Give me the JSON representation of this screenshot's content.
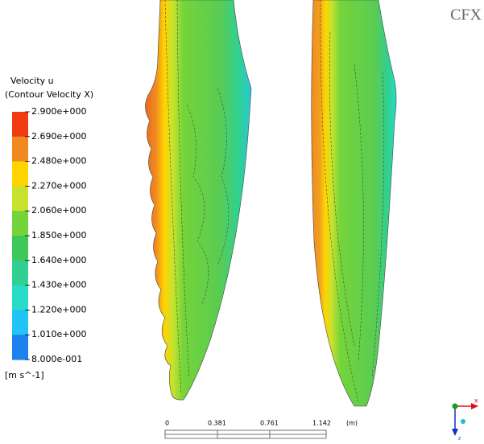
{
  "logo": "CFX",
  "legend": {
    "title": "Velocity u",
    "subtitle": "(Contour Velocity X)",
    "labels": [
      "2.900e+000",
      "2.690e+000",
      "2.480e+000",
      "2.270e+000",
      "2.060e+000",
      "1.850e+000",
      "1.640e+000",
      "1.430e+000",
      "1.220e+000",
      "1.010e+000",
      "8.000e-001"
    ],
    "colors": [
      "#f03a10",
      "#f08a20",
      "#ffd400",
      "#c8e22e",
      "#74d43a",
      "#3ec85a",
      "#30d090",
      "#28dcc8",
      "#22c4f4",
      "#1e82ee"
    ],
    "unit": "[m s^-1]"
  },
  "scale_bar": {
    "labels": [
      "0",
      "0.381",
      "0.761",
      "1.142"
    ],
    "unit": "(m)"
  },
  "triad": {
    "x": "x",
    "z": "z"
  }
}
